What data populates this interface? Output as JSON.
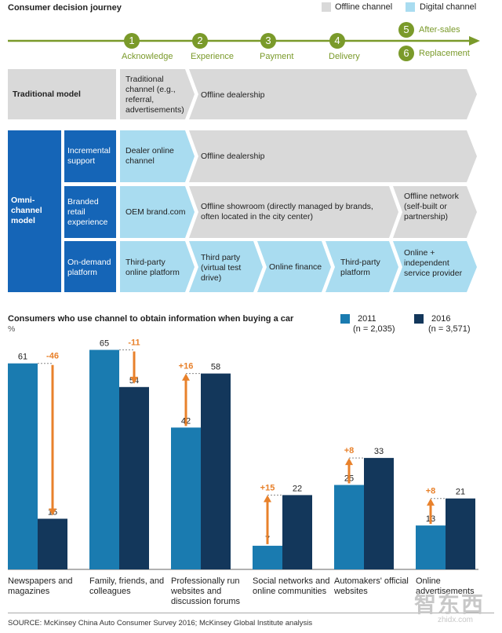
{
  "header": {
    "title": "Consumer decision journey",
    "legend_offline": "Offline channel",
    "legend_digital": "Digital channel",
    "colors": {
      "offline": "#d9d9d9",
      "digital": "#a9dcf0",
      "stage": "#7a9a2a",
      "omni": "#1565b7"
    }
  },
  "stages": [
    {
      "num": "1",
      "label": "Acknowledge"
    },
    {
      "num": "2",
      "label": "Experience"
    },
    {
      "num": "3",
      "label": "Payment"
    },
    {
      "num": "4",
      "label": "Delivery"
    },
    {
      "num": "5",
      "label": "After-sales"
    },
    {
      "num": "6",
      "label": "Replacement"
    }
  ],
  "traditional": {
    "label": "Traditional model",
    "cell1": "Traditional channel (e.g., referral, advertisements)",
    "cell2": "Offline dealership"
  },
  "omni": {
    "label": "Omni-channel model",
    "rows": [
      {
        "label": "Incremental support",
        "cells": [
          "Dealer online channel",
          "Offline dealership"
        ]
      },
      {
        "label": "Branded retail experience",
        "cells": [
          "OEM brand.com",
          "Offline showroom (directly managed by brands, often located in the city center)",
          "Offline network (self-built or partnership)"
        ]
      },
      {
        "label": "On-demand platform",
        "cells": [
          "Third-party online platform",
          "Third party (virtual test drive)",
          "Online finance",
          "Third-party platform",
          "Online + independent service provider"
        ]
      }
    ]
  },
  "chart_data": {
    "type": "bar",
    "title": "Consumers who use channel to obtain information when buying a car",
    "unit": "%",
    "categories": [
      "Newspapers and magazines",
      "Family, friends, and colleagues",
      "Professionally run websites and discussion forums",
      "Social networks and online communities",
      "Automakers' official websites",
      "Online advertisements"
    ],
    "series": [
      {
        "name": "2011",
        "note": "(n = 2,035)",
        "color": "#1a7bb0",
        "values": [
          61,
          65,
          42,
          7,
          25,
          13
        ]
      },
      {
        "name": "2016",
        "note": "(n = 3,571)",
        "color": "#13375b",
        "values": [
          15,
          54,
          58,
          22,
          33,
          21
        ]
      }
    ],
    "changes": [
      "-46",
      "-11",
      "+16",
      "+15",
      "+8",
      "+8"
    ],
    "ylim": [
      0,
      70
    ]
  },
  "footer": {
    "source": "SOURCE:  McKinsey China Auto Consumer Survey 2016; McKinsey Global Institute analysis",
    "watermark": "智东西",
    "watermark_sub": "zhidx.com"
  }
}
